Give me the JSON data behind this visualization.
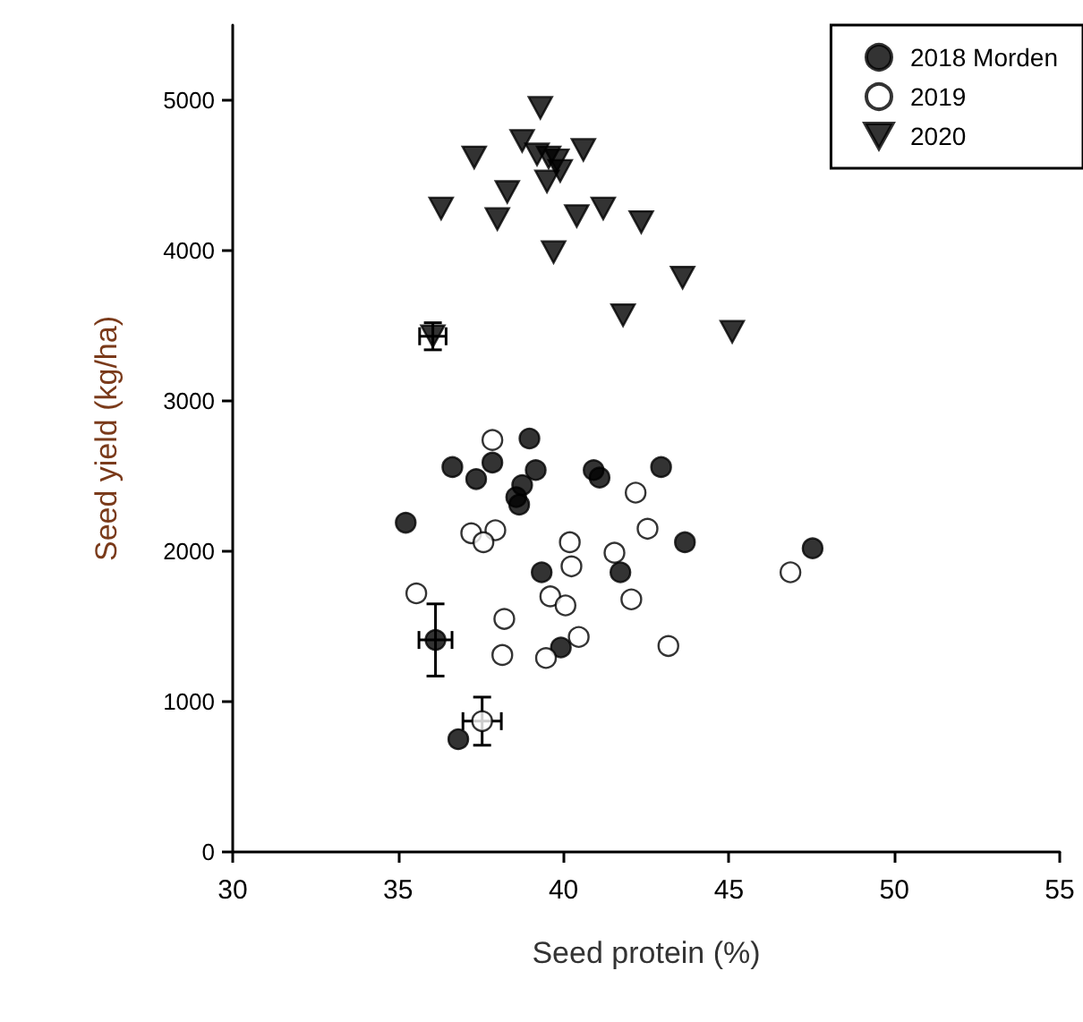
{
  "chart_data": {
    "type": "scatter",
    "xlabel": "Seed protein (%)",
    "ylabel": "Seed yield (kg/ha)",
    "xlim": [
      30,
      55
    ],
    "xticks": [
      30,
      35,
      40,
      45,
      50,
      55
    ],
    "ylim": [
      0,
      5500
    ],
    "yticks": [
      0,
      1000,
      2000,
      3000,
      4000,
      5000
    ],
    "grid": false,
    "legend": "top right",
    "series": [
      {
        "name": "2018 Morden",
        "color": "#000000",
        "marker": "circle",
        "x": [
          38.97,
          36.64,
          37.85,
          37.36,
          39.16,
          38.75,
          38.57,
          38.66,
          40.91,
          41.09,
          42.95,
          35.23,
          43.67,
          47.53,
          39.34,
          41.72,
          39.92,
          36.13,
          36.82
        ],
        "values": [
          2750,
          2560,
          2590,
          2480,
          2540,
          2440,
          2360,
          2310,
          2540,
          2490,
          2560,
          2190,
          2060,
          2020,
          1860,
          1860,
          1360,
          1410,
          750
        ],
        "errors": [
          null,
          null,
          null,
          null,
          null,
          null,
          null,
          null,
          null,
          null,
          null,
          null,
          null,
          null,
          null,
          null,
          null,
          240,
          null
        ],
        "xerrors": [
          null,
          null,
          null,
          null,
          null,
          null,
          null,
          null,
          null,
          null,
          null,
          null,
          null,
          null,
          null,
          null,
          null,
          0.5,
          null
        ]
      },
      {
        "name": "2019",
        "color": "#ffffff",
        "marker": "circle",
        "x": [
          37.85,
          37.21,
          37.94,
          37.58,
          42.18,
          42.54,
          40.19,
          40.24,
          41.54,
          42.05,
          39.6,
          40.06,
          35.55,
          38.21,
          38.15,
          39.47,
          40.46,
          43.17,
          46.86,
          37.54
        ],
        "values": [
          2740,
          2120,
          2140,
          2060,
          2390,
          2150,
          2060,
          1900,
          1990,
          1680,
          1700,
          1640,
          1720,
          1550,
          1310,
          1290,
          1430,
          1370,
          1860,
          870
        ],
        "errors": [
          null,
          null,
          null,
          null,
          null,
          null,
          null,
          null,
          null,
          null,
          null,
          null,
          null,
          null,
          null,
          null,
          null,
          null,
          null,
          160
        ],
        "xerrors": [
          null,
          null,
          null,
          null,
          null,
          null,
          null,
          null,
          null,
          null,
          null,
          null,
          null,
          null,
          null,
          null,
          null,
          null,
          null,
          0.58
        ]
      },
      {
        "name": "2020",
        "color": "#000000",
        "marker": "triangle",
        "x": [
          39.3,
          37.3,
          38.75,
          40.6,
          39.2,
          39.55,
          39.8,
          39.9,
          39.5,
          38.3,
          36.3,
          38.0,
          40.4,
          41.2,
          42.35,
          39.7,
          43.6,
          41.8,
          45.1,
          36.05
        ],
        "values": [
          4950,
          4620,
          4730,
          4670,
          4640,
          4620,
          4600,
          4530,
          4460,
          4390,
          4280,
          4210,
          4230,
          4280,
          4190,
          3990,
          3820,
          3570,
          3460,
          3430
        ],
        "errors": [
          null,
          null,
          null,
          null,
          null,
          null,
          null,
          null,
          null,
          null,
          null,
          null,
          null,
          null,
          null,
          null,
          null,
          null,
          null,
          90
        ],
        "xerrors": [
          null,
          null,
          null,
          null,
          null,
          null,
          null,
          null,
          null,
          null,
          null,
          null,
          null,
          null,
          null,
          null,
          null,
          null,
          null,
          0.4
        ]
      }
    ]
  }
}
